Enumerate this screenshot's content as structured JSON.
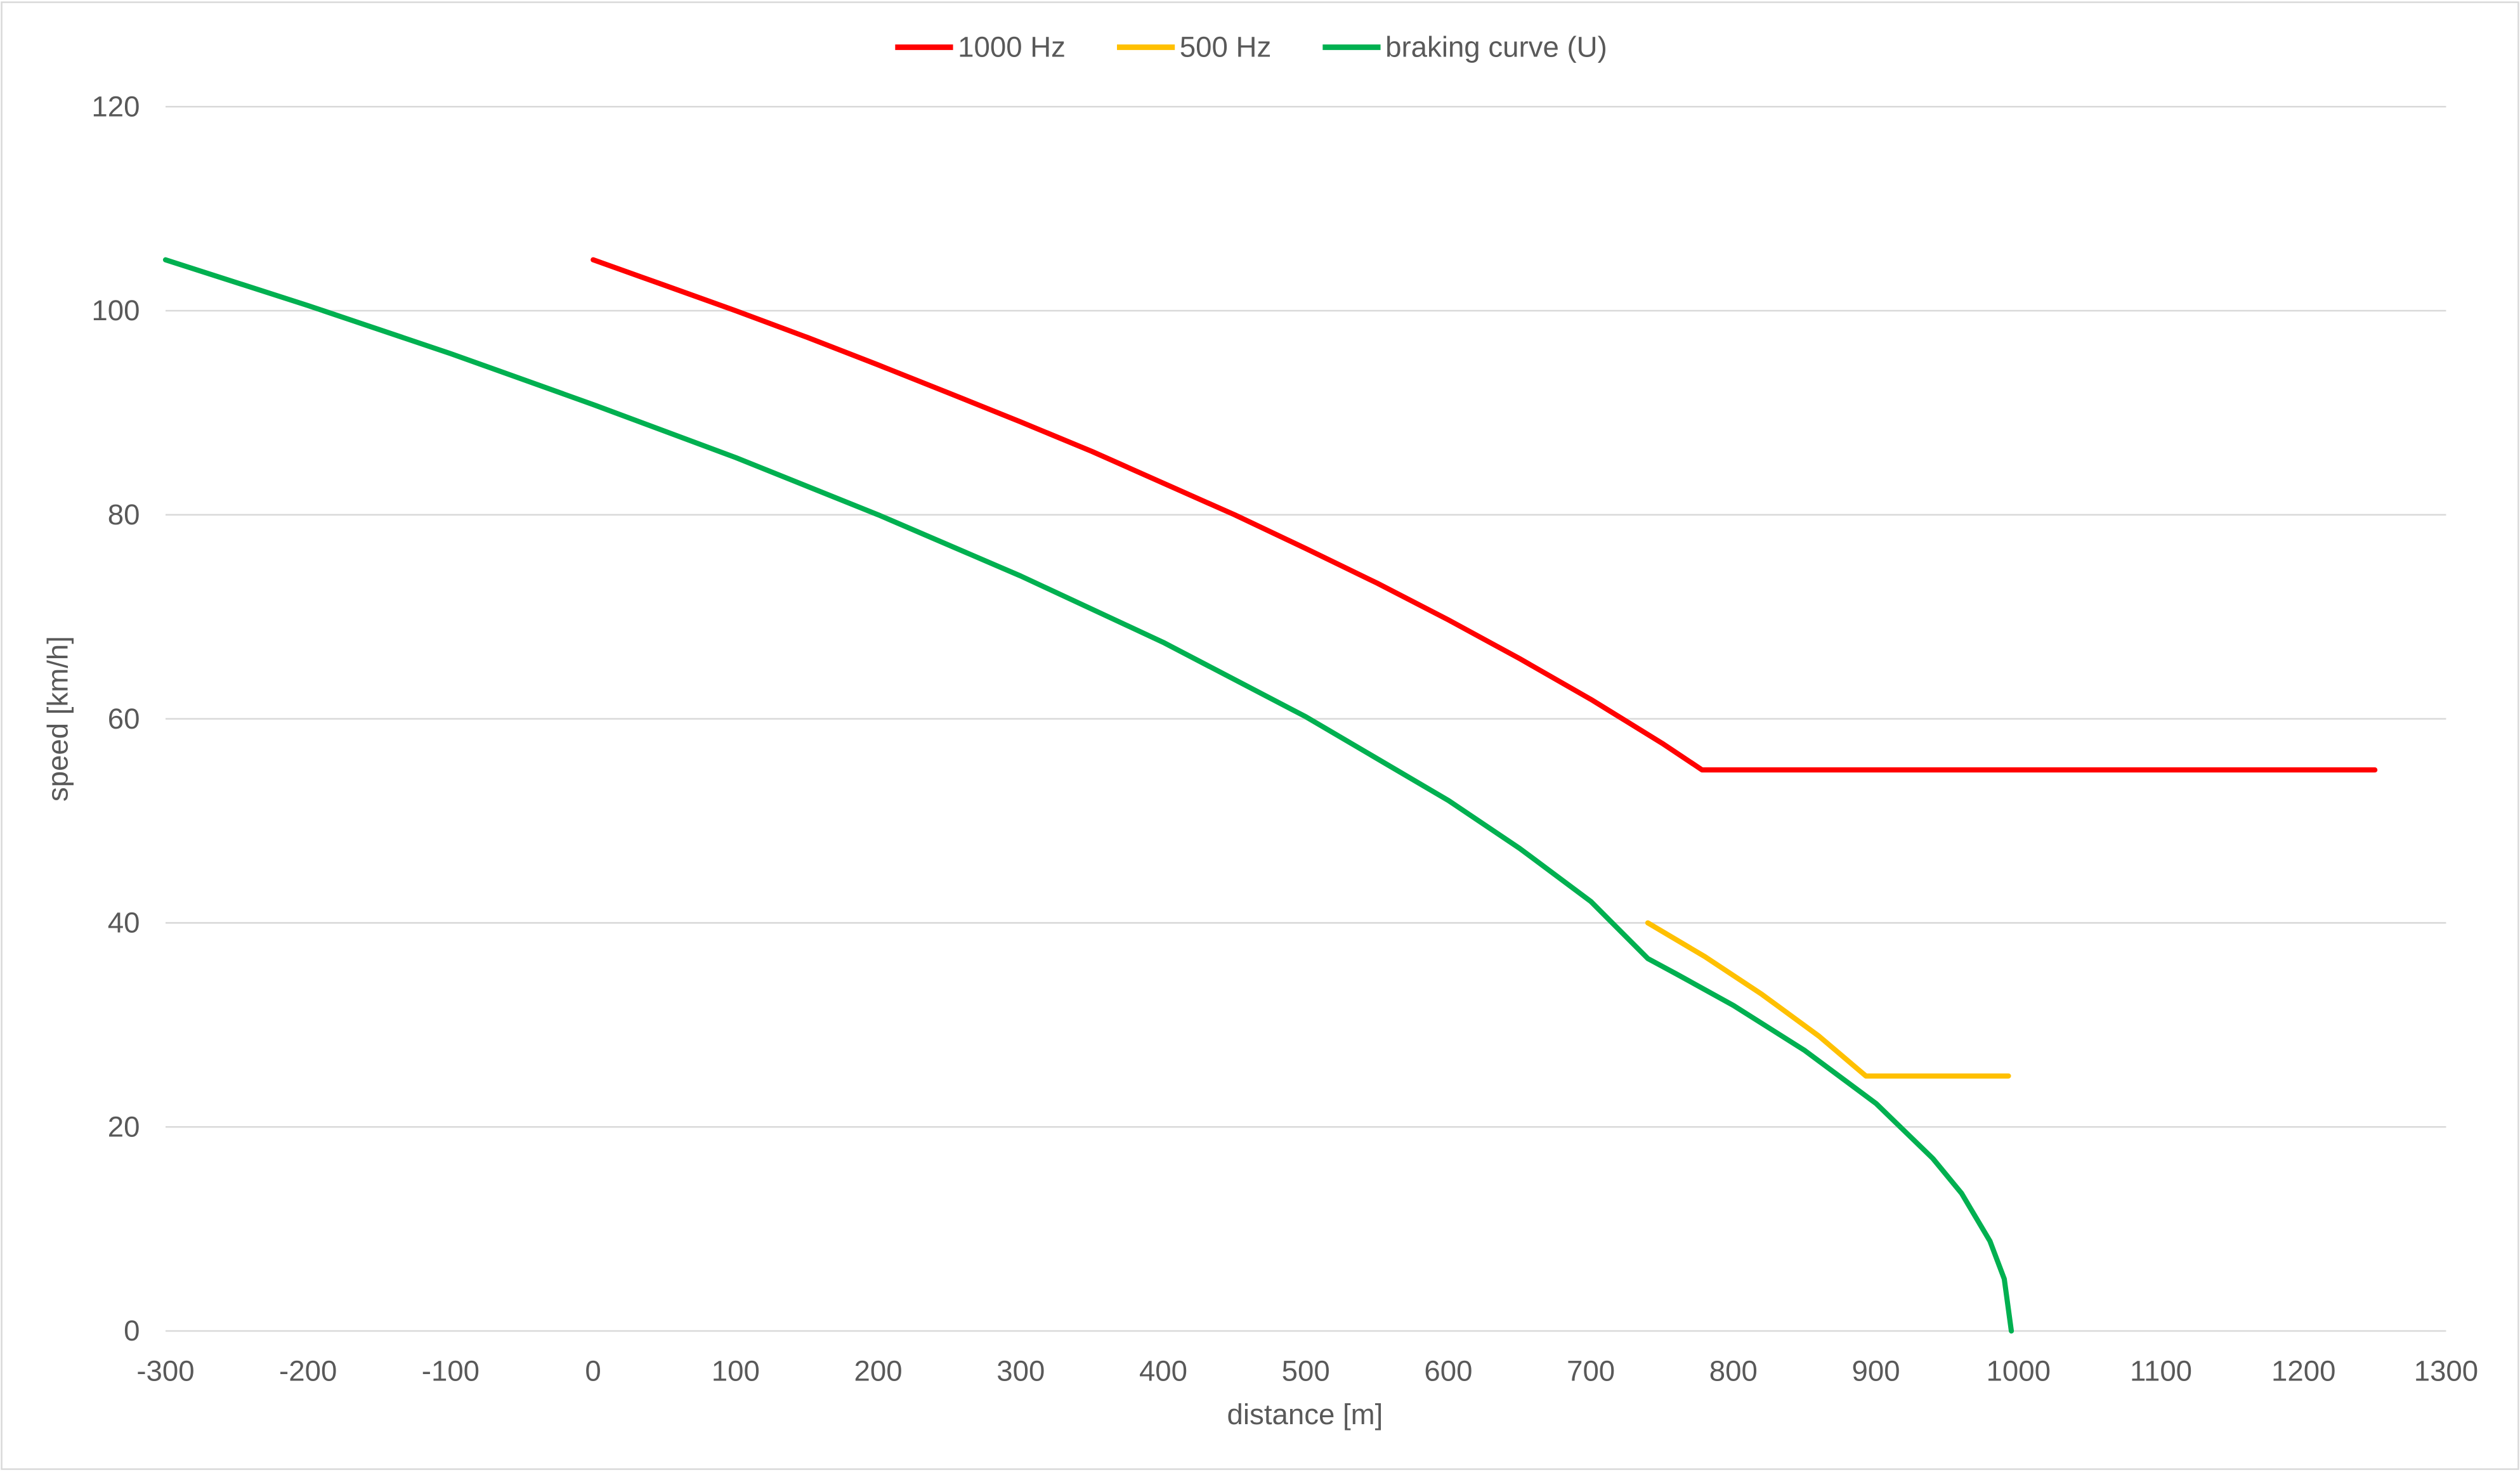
{
  "chart_data": {
    "type": "line",
    "title": "",
    "xlabel": "distance [m]",
    "ylabel": "speed [km/h]",
    "xlim": [
      -300,
      1300
    ],
    "ylim": [
      0,
      120
    ],
    "xticks": [
      -300,
      -200,
      -100,
      0,
      100,
      200,
      300,
      400,
      500,
      600,
      700,
      800,
      900,
      1000,
      1100,
      1200,
      1300
    ],
    "yticks": [
      0,
      20,
      40,
      60,
      80,
      100,
      120
    ],
    "grid": "horizontal",
    "legend_position": "top",
    "series": [
      {
        "name": "1000 Hz",
        "color": "#FF0000",
        "x": [
          0,
          50,
          100,
          150,
          200,
          250,
          300,
          350,
          400,
          450,
          500,
          550,
          600,
          650,
          700,
          750,
          778,
          1250
        ],
        "y": [
          105,
          102.5,
          100,
          97.4,
          94.7,
          91.9,
          89.1,
          86.2,
          83.1,
          80,
          76.7,
          73.3,
          69.7,
          65.9,
          61.9,
          57.6,
          55,
          55
        ]
      },
      {
        "name": "500 Hz",
        "color": "#FFC000",
        "x": [
          740,
          780,
          820,
          860,
          893,
          993
        ],
        "y": [
          40,
          36.7,
          33,
          28.9,
          25,
          25
        ]
      },
      {
        "name": "braking curve (U)",
        "color": "#00B050",
        "x": [
          -300,
          -200,
          -100,
          0,
          100,
          200,
          300,
          400,
          500,
          600,
          650,
          700,
          740,
          760,
          800,
          850,
          900,
          940,
          960,
          980,
          990,
          995
        ],
        "y": [
          105,
          100.5,
          95.8,
          90.8,
          85.6,
          80,
          74,
          67.5,
          60.2,
          52,
          47.3,
          42.1,
          36.5,
          35,
          31.9,
          27.5,
          22.3,
          16.9,
          13.5,
          8.8,
          5.1,
          0
        ]
      }
    ]
  }
}
